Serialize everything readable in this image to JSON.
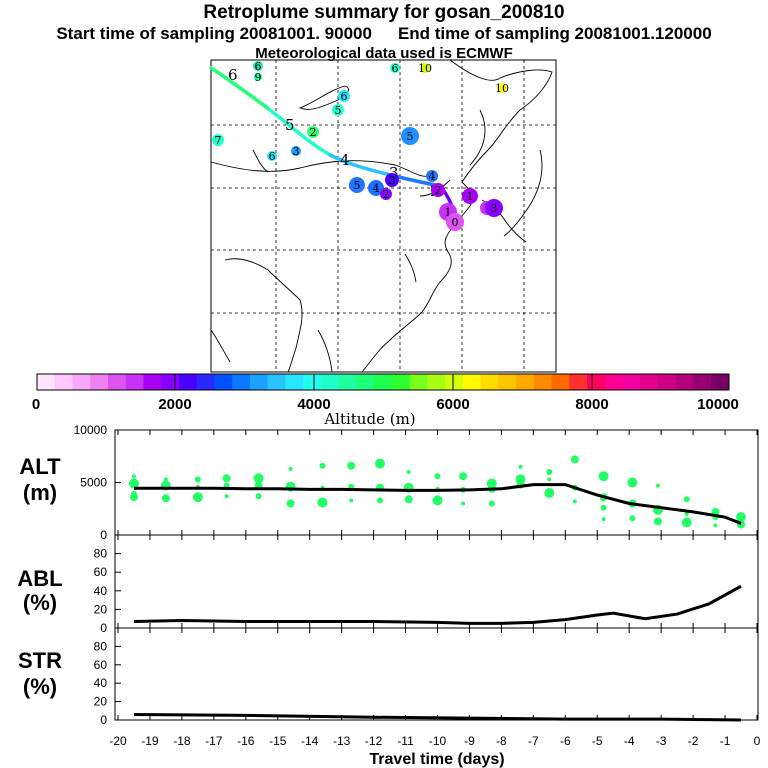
{
  "titles": {
    "main": "Retroplume summary for gosan_200810",
    "start": "Start time of sampling 20081001. 90000",
    "end": "End time of sampling 20081001.120000",
    "meteo": "Meteorological data used is ECMWF"
  },
  "colorbar": {
    "label": "Altitude (m)",
    "ticks": [
      "0",
      "2000",
      "4000",
      "6000",
      "8000",
      "10000"
    ],
    "colors": [
      "#ffe6ff",
      "#ffc8ff",
      "#f8a8f8",
      "#ee82ee",
      "#dc55f0",
      "#c832f5",
      "#a800f5",
      "#8a00ff",
      "#4b00ff",
      "#2828ff",
      "#0050ff",
      "#0a78ff",
      "#1ea0ff",
      "#28c4ff",
      "#28e6ff",
      "#22ffee",
      "#20ffc8",
      "#20ffa0",
      "#20ff78",
      "#20ff50",
      "#2eff2e",
      "#78ff1e",
      "#a8ff14",
      "#d4ff0a",
      "#fffa00",
      "#ffdc00",
      "#ffc400",
      "#ffa800",
      "#ff8c00",
      "#ff6a00",
      "#ff3030",
      "#ff0060",
      "#ff0090",
      "#f000a0",
      "#e0008c",
      "#cc0080",
      "#b4007a",
      "#960070",
      "#780064"
    ]
  },
  "map": {
    "trajectory_labels": [
      "6",
      "5",
      "4",
      "3",
      "2",
      "1"
    ],
    "cluster_labels": [
      {
        "text": "6",
        "color": "#28e6aa"
      },
      {
        "text": "9",
        "color": "#20ffa0"
      },
      {
        "text": "6",
        "color": "#20ffc8"
      },
      {
        "text": "10",
        "color": "#d4ff0a"
      },
      {
        "text": "10",
        "color": "#fffa00"
      },
      {
        "text": "6",
        "color": "#28e6ff"
      },
      {
        "text": "5",
        "color": "#28ffd0"
      },
      {
        "text": "2",
        "color": "#2eff6e"
      },
      {
        "text": "5",
        "color": "#1e90ff"
      },
      {
        "text": "7",
        "color": "#22ffcc"
      },
      {
        "text": "6",
        "color": "#28e6ff"
      },
      {
        "text": "3",
        "color": "#1ea0ff"
      },
      {
        "text": "5",
        "color": "#1e78ff"
      },
      {
        "text": "4",
        "color": "#1e6eff"
      },
      {
        "text": "3",
        "color": "#4b00ff"
      },
      {
        "text": "2",
        "color": "#8a00ff"
      },
      {
        "text": "4",
        "color": "#1e78ff"
      },
      {
        "text": "1",
        "color": "#a800f5"
      },
      {
        "text": "1",
        "color": "#c832f5"
      },
      {
        "text": "1",
        "color": "#c832f5"
      },
      {
        "text": "2",
        "color": "#a800f5"
      },
      {
        "text": "3",
        "color": "#8a00ff"
      },
      {
        "text": "0",
        "color": "#dc55f0"
      }
    ]
  },
  "chart_data": [
    {
      "type": "line",
      "panel": "ALT",
      "ylabel_line1": "ALT",
      "ylabel_line2": "(m)",
      "ylim": [
        0,
        10000
      ],
      "yticks": [
        "0",
        "5000",
        "10000"
      ],
      "x": [
        -19.5,
        -18,
        -17,
        -16,
        -15,
        -14,
        -13,
        -12,
        -11,
        -10,
        -9,
        -8,
        -7,
        -6,
        -5,
        -4,
        -3,
        -2,
        -1,
        -0.5
      ],
      "mean": [
        4450,
        4450,
        4450,
        4400,
        4400,
        4350,
        4350,
        4300,
        4250,
        4250,
        4300,
        4400,
        4800,
        4800,
        3800,
        3000,
        2600,
        2200,
        1700,
        1100
      ],
      "scatter_points": [
        {
          "x": -19.5,
          "y": 5600
        },
        {
          "x": -19.5,
          "y": 4900
        },
        {
          "x": -19.5,
          "y": 3600
        },
        {
          "x": -19.5,
          "y": 3900
        },
        {
          "x": -18.5,
          "y": 5300
        },
        {
          "x": -18.5,
          "y": 4700
        },
        {
          "x": -18.5,
          "y": 3500
        },
        {
          "x": -17.5,
          "y": 5300
        },
        {
          "x": -17.5,
          "y": 4600
        },
        {
          "x": -17.5,
          "y": 3600
        },
        {
          "x": -16.6,
          "y": 5400
        },
        {
          "x": -16.6,
          "y": 4700
        },
        {
          "x": -16.6,
          "y": 3700
        },
        {
          "x": -15.6,
          "y": 5400
        },
        {
          "x": -15.6,
          "y": 4700
        },
        {
          "x": -15.6,
          "y": 3700
        },
        {
          "x": -14.6,
          "y": 6300
        },
        {
          "x": -14.6,
          "y": 4600
        },
        {
          "x": -14.6,
          "y": 3000
        },
        {
          "x": -13.6,
          "y": 6600
        },
        {
          "x": -13.6,
          "y": 4500
        },
        {
          "x": -13.6,
          "y": 3100
        },
        {
          "x": -12.7,
          "y": 6600
        },
        {
          "x": -12.7,
          "y": 4600
        },
        {
          "x": -12.7,
          "y": 3300
        },
        {
          "x": -11.8,
          "y": 6800
        },
        {
          "x": -11.8,
          "y": 4500
        },
        {
          "x": -11.8,
          "y": 3300
        },
        {
          "x": -10.9,
          "y": 6000
        },
        {
          "x": -10.9,
          "y": 4500
        },
        {
          "x": -10.9,
          "y": 3400
        },
        {
          "x": -10.0,
          "y": 5600
        },
        {
          "x": -10.0,
          "y": 4400
        },
        {
          "x": -10.0,
          "y": 3300
        },
        {
          "x": -9.2,
          "y": 5600
        },
        {
          "x": -9.2,
          "y": 4300
        },
        {
          "x": -9.2,
          "y": 3000
        },
        {
          "x": -8.3,
          "y": 4900
        },
        {
          "x": -8.3,
          "y": 4400
        },
        {
          "x": -8.3,
          "y": 3000
        },
        {
          "x": -7.4,
          "y": 6500
        },
        {
          "x": -7.4,
          "y": 5300
        },
        {
          "x": -7.4,
          "y": 4800
        },
        {
          "x": -6.5,
          "y": 6000
        },
        {
          "x": -6.5,
          "y": 5300
        },
        {
          "x": -6.5,
          "y": 4000
        },
        {
          "x": -5.7,
          "y": 7200
        },
        {
          "x": -5.7,
          "y": 4500
        },
        {
          "x": -5.7,
          "y": 3200
        },
        {
          "x": -4.8,
          "y": 5600
        },
        {
          "x": -4.8,
          "y": 3600
        },
        {
          "x": -4.8,
          "y": 2600
        },
        {
          "x": -4.8,
          "y": 1500
        },
        {
          "x": -3.9,
          "y": 5000
        },
        {
          "x": -3.9,
          "y": 3000
        },
        {
          "x": -3.9,
          "y": 1600
        },
        {
          "x": -3.1,
          "y": 4700
        },
        {
          "x": -3.1,
          "y": 2400
        },
        {
          "x": -3.1,
          "y": 1300
        },
        {
          "x": -2.2,
          "y": 3400
        },
        {
          "x": -2.2,
          "y": 2000
        },
        {
          "x": -2.2,
          "y": 1200
        },
        {
          "x": -1.3,
          "y": 2200
        },
        {
          "x": -1.3,
          "y": 1700
        },
        {
          "x": -1.3,
          "y": 900
        },
        {
          "x": -0.5,
          "y": 1700
        },
        {
          "x": -0.5,
          "y": 1000
        }
      ]
    },
    {
      "type": "line",
      "panel": "ABL",
      "ylabel_line1": "ABL",
      "ylabel_line2": "(%)",
      "ylim": [
        0,
        100
      ],
      "yticks": [
        "0",
        "20",
        "40",
        "60",
        "80"
      ],
      "x": [
        -19.5,
        -18,
        -16,
        -14,
        -12,
        -10,
        -9,
        -8,
        -7,
        -6,
        -5,
        -4.5,
        -3.5,
        -2.5,
        -1.5,
        -0.5
      ],
      "values": [
        7,
        8,
        7,
        7,
        7,
        6,
        5,
        5,
        6,
        9,
        14,
        16,
        10,
        15,
        26,
        45
      ]
    },
    {
      "type": "line",
      "panel": "STR",
      "ylabel_line1": "STR",
      "ylabel_line2": "(%)",
      "ylim": [
        0,
        100
      ],
      "yticks": [
        "0",
        "20",
        "40",
        "60",
        "80"
      ],
      "x": [
        -19.5,
        -16,
        -12,
        -9,
        -6,
        -3,
        -0.5
      ],
      "values": [
        6,
        5,
        3,
        2,
        1,
        1,
        0
      ],
      "xlabel": "Travel time (days)",
      "xticks": [
        "-20",
        "-19",
        "-18",
        "-17",
        "-16",
        "-15",
        "-14",
        "-13",
        "-12",
        "-11",
        "-10",
        "-9",
        "-8",
        "-7",
        "-6",
        "-5",
        "-4",
        "-3",
        "-2",
        "-1",
        "0"
      ]
    }
  ]
}
